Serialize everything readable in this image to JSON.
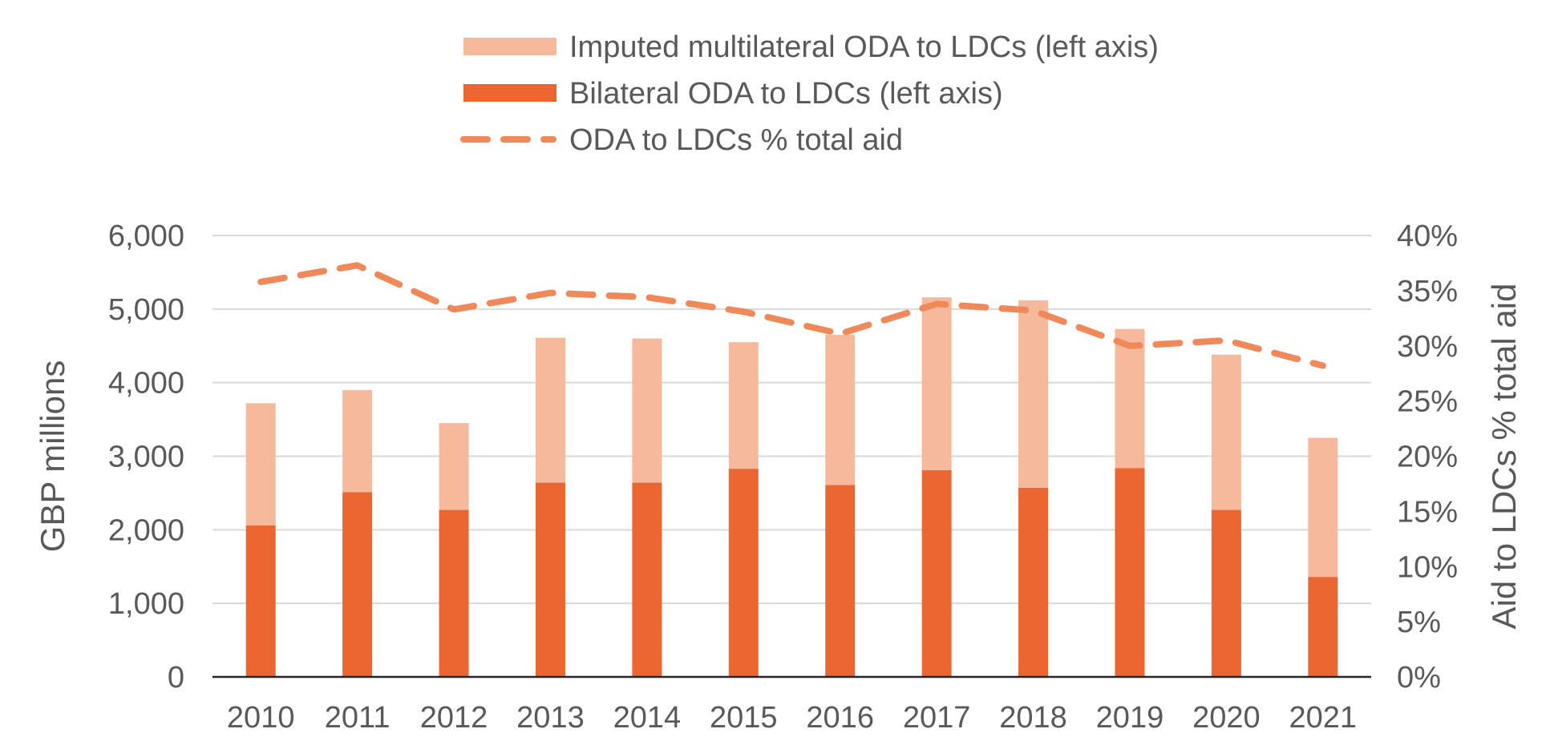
{
  "chart_data": {
    "type": "bar",
    "stacked": true,
    "categories": [
      "2010",
      "2011",
      "2012",
      "2013",
      "2014",
      "2015",
      "2016",
      "2017",
      "2018",
      "2019",
      "2020",
      "2021"
    ],
    "series": [
      {
        "name": "Bilateral ODA to LDCs (left axis)",
        "type": "bar",
        "axis": "left",
        "color": "#EB6631",
        "values": [
          2060,
          2510,
          2270,
          2640,
          2640,
          2830,
          2610,
          2810,
          2570,
          2840,
          2270,
          1360
        ]
      },
      {
        "name": "Imputed multilateral ODA to LDCs (left axis)",
        "type": "bar",
        "axis": "left",
        "color": "#F6B99C",
        "values": [
          1660,
          1390,
          1180,
          1970,
          1960,
          1720,
          2040,
          2350,
          2550,
          1890,
          2110,
          1890
        ]
      },
      {
        "name": "ODA to LDCs % total aid",
        "type": "line",
        "style": "dashed",
        "axis": "right",
        "color": "#F0895A",
        "values": [
          35.8,
          37.3,
          33.3,
          34.8,
          34.4,
          33.1,
          31.1,
          33.8,
          33.2,
          30.0,
          30.5,
          28.2
        ]
      }
    ],
    "ylabel": "GBP millions",
    "y2label": "Aid to LDCs % total aid",
    "ylim": [
      0,
      6000
    ],
    "y2lim": [
      0,
      40
    ],
    "yticks": [
      "0",
      "1,000",
      "2,000",
      "3,000",
      "4,000",
      "5,000",
      "6,000"
    ],
    "y2ticks": [
      "0%",
      "5%",
      "10%",
      "15%",
      "20%",
      "25%",
      "30%",
      "35%",
      "40%"
    ],
    "grid": true,
    "legend": "top-center",
    "legend_order": [
      1,
      0,
      2
    ]
  }
}
